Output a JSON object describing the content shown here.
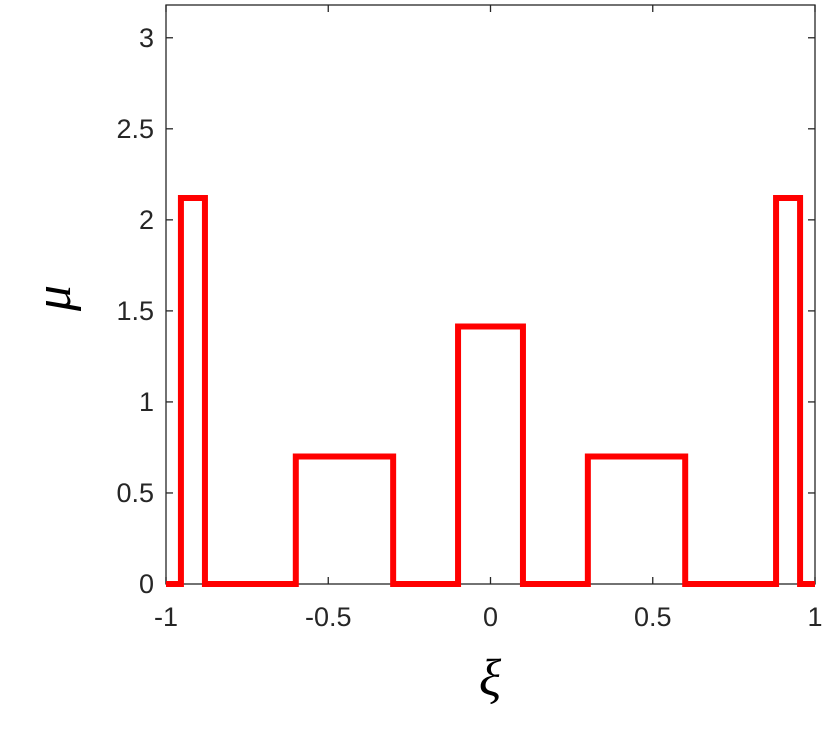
{
  "chart_data": {
    "type": "line",
    "xlabel": "ξ",
    "ylabel": "μ",
    "x": [
      -1,
      -0.954,
      -0.954,
      -0.88,
      -0.88,
      -0.6,
      -0.6,
      -0.3,
      -0.3,
      -0.1,
      -0.1,
      0.1,
      0.1,
      0.3,
      0.3,
      0.6,
      0.6,
      0.88,
      0.88,
      0.954,
      0.954,
      1
    ],
    "series": [
      {
        "color": "#ff0000",
        "values": [
          0,
          0,
          2.12,
          2.12,
          0,
          0,
          0.7,
          0.7,
          0,
          0,
          1.414,
          1.414,
          0,
          0,
          0.7,
          0.7,
          0,
          0,
          2.12,
          2.12,
          0,
          0
        ]
      }
    ],
    "xlim": [
      -1,
      1
    ],
    "ylim": [
      0,
      3.18
    ],
    "xticks": [
      -1,
      -0.5,
      0,
      0.5,
      1
    ],
    "yticks": [
      0,
      0.5,
      1,
      1.5,
      2,
      2.5,
      3
    ],
    "grid": false
  }
}
